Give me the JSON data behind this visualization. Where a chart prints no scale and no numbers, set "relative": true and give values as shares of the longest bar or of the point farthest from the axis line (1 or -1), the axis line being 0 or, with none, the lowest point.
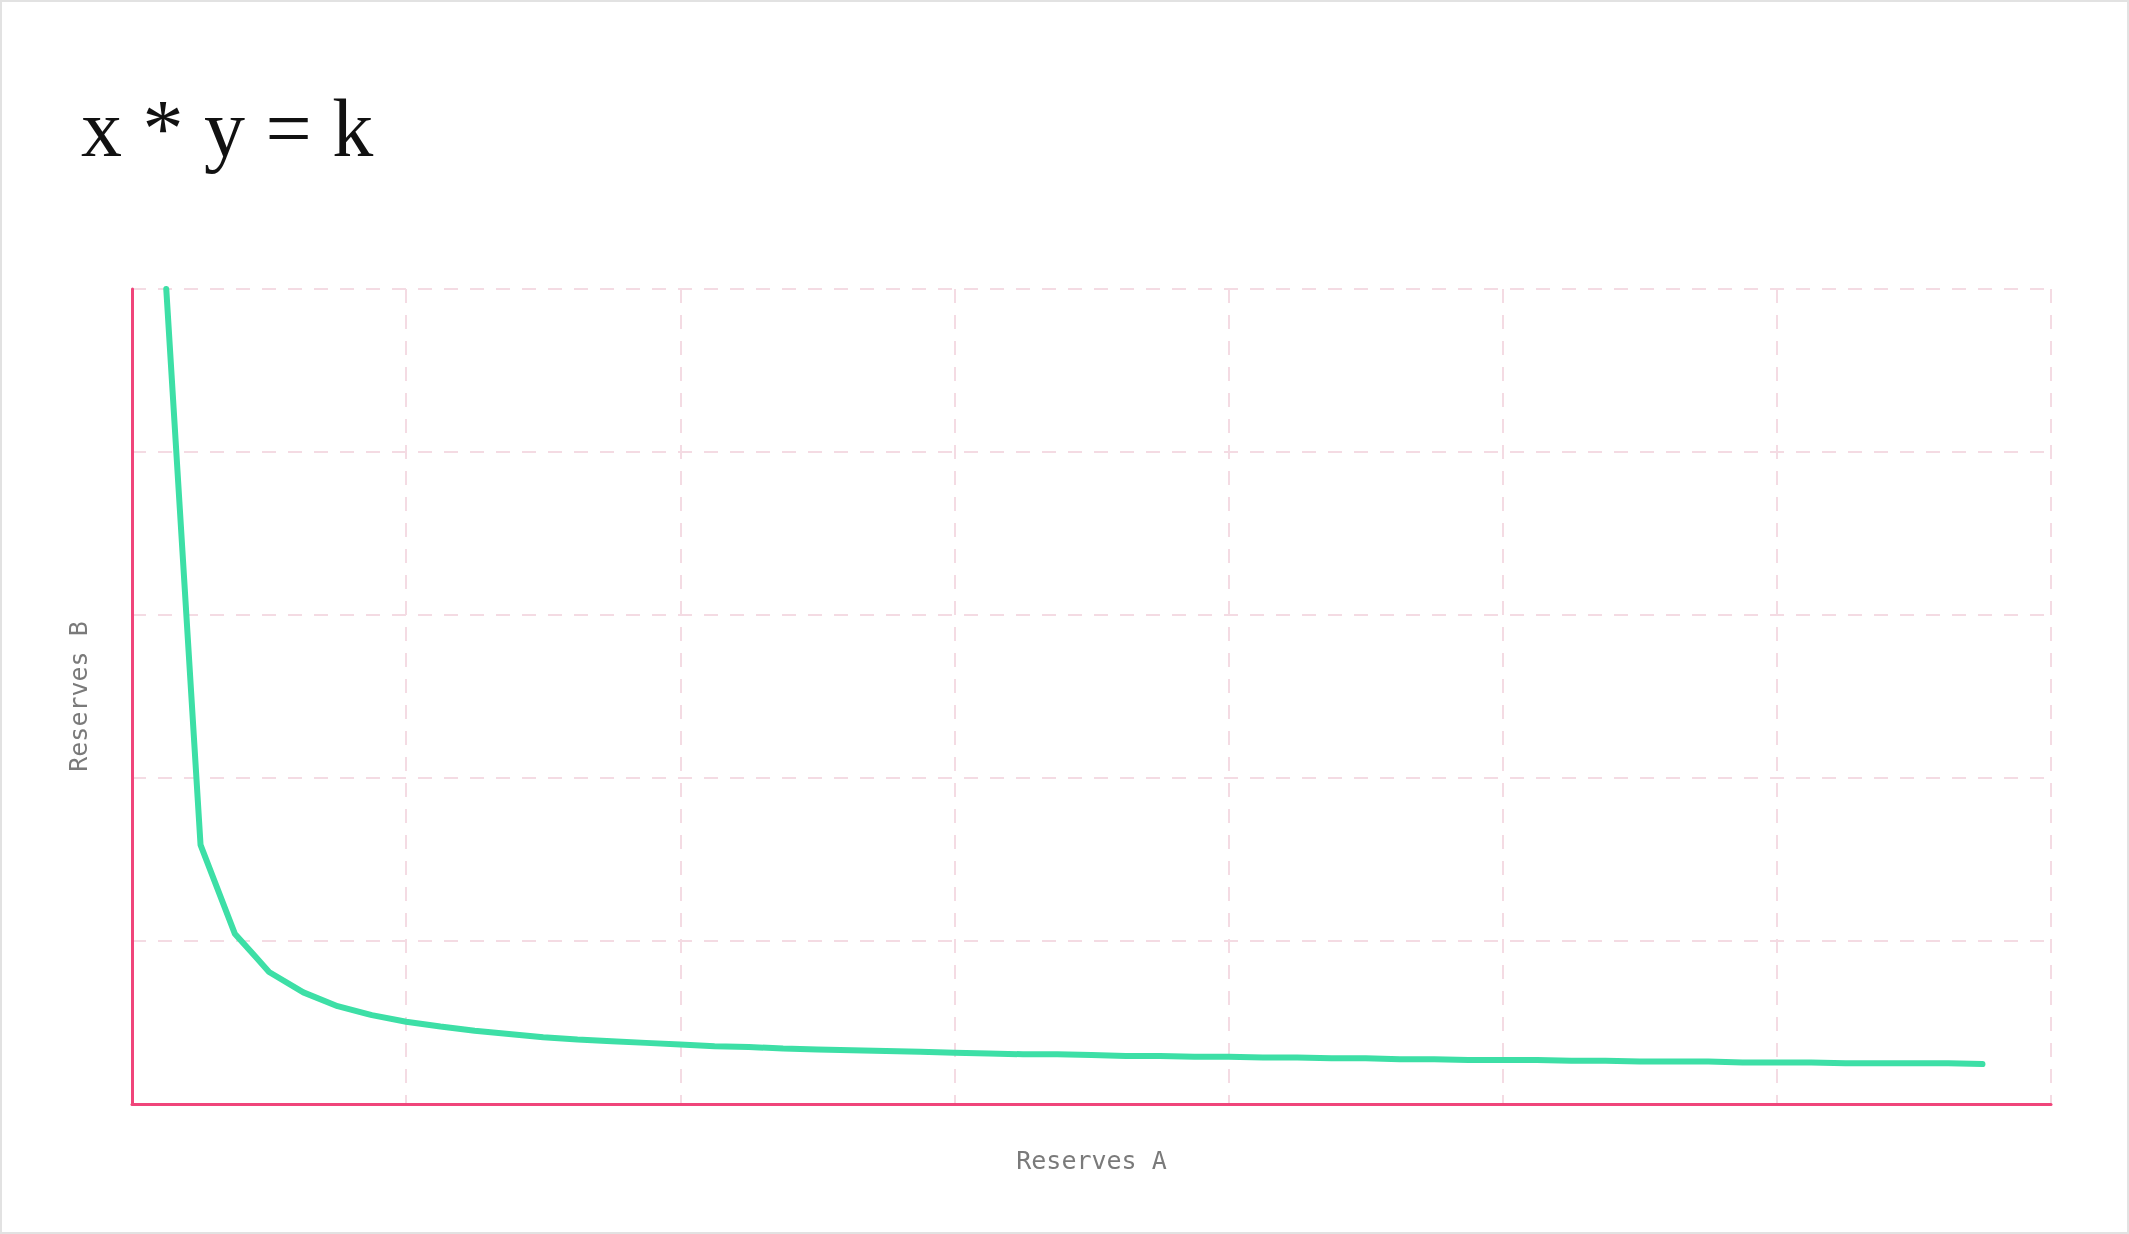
{
  "chart_data": {
    "type": "line",
    "title": "x * y = k",
    "xlabel": "Reserves A",
    "ylabel": "Reserves B",
    "relative": true,
    "grid": true,
    "marker": "none",
    "line_style": "solid",
    "categories": [
      null,
      null,
      null,
      null,
      null,
      null,
      null,
      null,
      null,
      null,
      null,
      null,
      null,
      null,
      null,
      null,
      null,
      null,
      null,
      null,
      null,
      null,
      null,
      null,
      null,
      null,
      null,
      null,
      null,
      null,
      null,
      null,
      null,
      null,
      null,
      null,
      null,
      null,
      null,
      null,
      null,
      null,
      null,
      null,
      null,
      null,
      null,
      null,
      null,
      null,
      null,
      null,
      null,
      null,
      null,
      null,
      null
    ],
    "series": [
      {
        "color": "#3ddfa6",
        "values": [
          null,
          1.0,
          0.318,
          0.209,
          0.162,
          0.137,
          0.12,
          0.109,
          0.101,
          0.095,
          0.09,
          0.086,
          0.082,
          0.079,
          0.077,
          0.075,
          0.073,
          0.071,
          0.07,
          0.068,
          0.067,
          0.066,
          0.065,
          0.064,
          0.063,
          0.062,
          0.061,
          0.061,
          0.06,
          0.059,
          0.059,
          0.058,
          0.058,
          0.057,
          0.057,
          0.056,
          0.056,
          0.055,
          0.055,
          0.054,
          0.054,
          0.054,
          0.053,
          0.053,
          0.052,
          0.052,
          0.052,
          0.051,
          0.051,
          0.051,
          0.05,
          0.05,
          0.05,
          0.05,
          0.049,
          null,
          null
        ]
      }
    ]
  }
}
